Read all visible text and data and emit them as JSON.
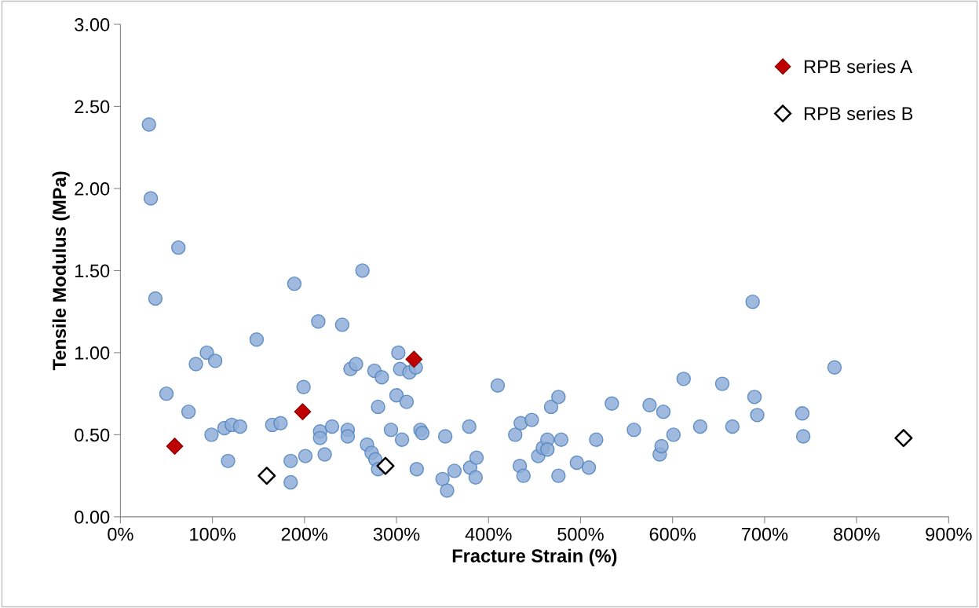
{
  "chart_data": {
    "type": "scatter",
    "xlabel": "Fracture Strain (%)",
    "ylabel": "Tensile Modulus (MPa)",
    "xlim": [
      0,
      900
    ],
    "ylim": [
      0,
      3
    ],
    "xticks": [
      {
        "value": 0,
        "label": "0%"
      },
      {
        "value": 100,
        "label": "100%"
      },
      {
        "value": 200,
        "label": "200%"
      },
      {
        "value": 300,
        "label": "300%"
      },
      {
        "value": 400,
        "label": "400%"
      },
      {
        "value": 500,
        "label": "500%"
      },
      {
        "value": 600,
        "label": "600%"
      },
      {
        "value": 700,
        "label": "700%"
      },
      {
        "value": 800,
        "label": "800%"
      },
      {
        "value": 900,
        "label": "900%"
      }
    ],
    "yticks": [
      {
        "value": 0,
        "label": "0.00"
      },
      {
        "value": 0.5,
        "label": "0.50"
      },
      {
        "value": 1,
        "label": "1.00"
      },
      {
        "value": 1.5,
        "label": "1.50"
      },
      {
        "value": 2,
        "label": "2.00"
      },
      {
        "value": 2.5,
        "label": "2.50"
      },
      {
        "value": 3,
        "label": "3.00"
      }
    ],
    "grid": false,
    "legend": "top right",
    "series": [
      {
        "color": "#8eaed8",
        "marker": "circle",
        "x": [
          31,
          33,
          63,
          38,
          50,
          74,
          82,
          94,
          103,
          99,
          113,
          117,
          121,
          130,
          148,
          165,
          174,
          185,
          185,
          189,
          199,
          201,
          215,
          217,
          217,
          222,
          230,
          241,
          247,
          247,
          250,
          256,
          263,
          268,
          273,
          276,
          277,
          280,
          280,
          284,
          294,
          300,
          302,
          304,
          306,
          311,
          314,
          321,
          322,
          326,
          328,
          350,
          353,
          355,
          363,
          379,
          380,
          386,
          387,
          410,
          429,
          434,
          435,
          438,
          447,
          454,
          459,
          464,
          464,
          468,
          476,
          476,
          479,
          496,
          509,
          517,
          534,
          558,
          575,
          586,
          588,
          590,
          601,
          612,
          630,
          654,
          665,
          687,
          689,
          692,
          741,
          742,
          776
        ],
        "values": [
          2.39,
          1.94,
          1.64,
          1.33,
          0.75,
          0.64,
          0.93,
          1.0,
          0.95,
          0.5,
          0.54,
          0.34,
          0.56,
          0.55,
          1.08,
          0.56,
          0.57,
          0.34,
          0.21,
          1.42,
          0.79,
          0.37,
          1.19,
          0.52,
          0.48,
          0.38,
          0.55,
          1.17,
          0.53,
          0.49,
          0.9,
          0.93,
          1.5,
          0.44,
          0.39,
          0.89,
          0.35,
          0.29,
          0.67,
          0.85,
          0.53,
          0.74,
          1.0,
          0.9,
          0.47,
          0.7,
          0.88,
          0.91,
          0.29,
          0.53,
          0.51,
          0.23,
          0.49,
          0.16,
          0.28,
          0.55,
          0.3,
          0.24,
          0.36,
          0.8,
          0.5,
          0.31,
          0.57,
          0.25,
          0.59,
          0.37,
          0.42,
          0.47,
          0.41,
          0.67,
          0.73,
          0.25,
          0.47,
          0.33,
          0.3,
          0.47,
          0.69,
          0.53,
          0.68,
          0.38,
          0.43,
          0.64,
          0.5,
          0.84,
          0.55,
          0.81,
          0.55,
          1.31,
          0.73,
          0.62,
          0.63,
          0.49,
          0.91
        ]
      },
      {
        "name": "RPB series A",
        "color": "#c00000",
        "marker": "diamond",
        "x": [
          59,
          198,
          319
        ],
        "values": [
          0.43,
          0.64,
          0.96
        ]
      },
      {
        "name": "RPB series B",
        "color": "#000000",
        "marker": "diamond",
        "x": [
          159,
          288,
          851
        ],
        "values": [
          0.25,
          0.31,
          0.48
        ]
      }
    ]
  }
}
